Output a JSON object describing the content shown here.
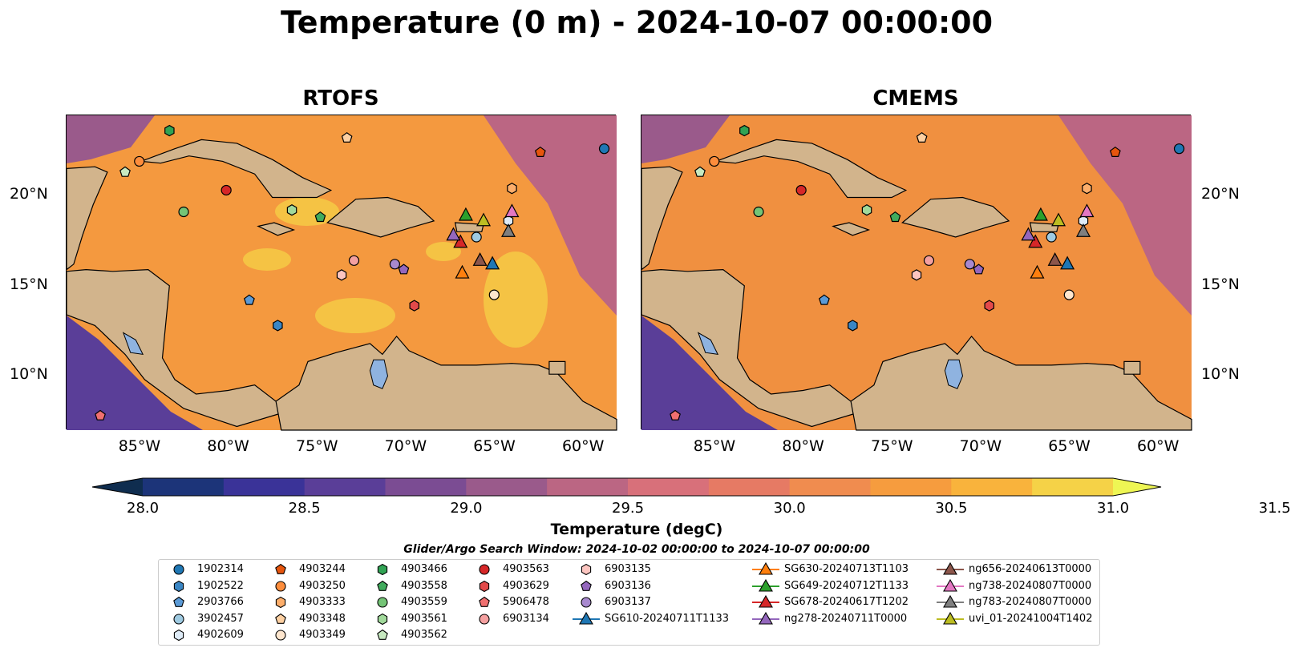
{
  "title": "Temperature (0 m) - 2024-10-07 00:00:00",
  "panels": [
    {
      "title": "RTOFS",
      "fill": "#f4993f"
    },
    {
      "title": "CMEMS",
      "fill": "#f09040"
    }
  ],
  "x_tick_labels": [
    "85°W",
    "80°W",
    "75°W",
    "70°W",
    "65°W",
    "60°W"
  ],
  "y_tick_labels": [
    "20°N",
    "15°N",
    "10°N"
  ],
  "colorbar": {
    "title": "Temperature (degC)",
    "tick_labels": [
      "28.0",
      "28.5",
      "29.0",
      "29.5",
      "30.0",
      "30.5",
      "31.0",
      "31.5"
    ],
    "colors": [
      "#0f2d4f",
      "#1c3479",
      "#3a3398",
      "#5a3e98",
      "#7b4c93",
      "#9a5a8b",
      "#bb6683",
      "#d8707a",
      "#e67a64",
      "#f08c4f",
      "#f69c3e",
      "#f9b33c",
      "#f5d247",
      "#eef654"
    ]
  },
  "legend": {
    "title": "Glider/Argo Search Window: 2024-10-02 00:00:00 to 2024-10-07 00:00:00",
    "entries": [
      {
        "label": "1902314",
        "shape": "circle",
        "color": "#1f77b4"
      },
      {
        "label": "1902522",
        "shape": "hexagon",
        "color": "#3a86c4"
      },
      {
        "label": "2903766",
        "shape": "pentagon",
        "color": "#5b9ad6"
      },
      {
        "label": "3902457",
        "shape": "circle",
        "color": "#9ecae1"
      },
      {
        "label": "4902609",
        "shape": "hexagon",
        "color": "#deebf7"
      },
      {
        "label": "4903244",
        "shape": "pentagon",
        "color": "#e6550d"
      },
      {
        "label": "4903250",
        "shape": "circle",
        "color": "#fd8d3c"
      },
      {
        "label": "4903333",
        "shape": "hexagon",
        "color": "#fdae6b"
      },
      {
        "label": "4903348",
        "shape": "pentagon",
        "color": "#fdd0a2"
      },
      {
        "label": "4903349",
        "shape": "circle",
        "color": "#fee6ce"
      },
      {
        "label": "4903466",
        "shape": "hexagon",
        "color": "#31a354"
      },
      {
        "label": "4903558",
        "shape": "pentagon",
        "color": "#41ab5d"
      },
      {
        "label": "4903559",
        "shape": "circle",
        "color": "#74c476"
      },
      {
        "label": "4903561",
        "shape": "hexagon",
        "color": "#a1d99b"
      },
      {
        "label": "4903562",
        "shape": "pentagon",
        "color": "#c7e9c0"
      },
      {
        "label": "4903563",
        "shape": "circle",
        "color": "#d62728"
      },
      {
        "label": "4903629",
        "shape": "hexagon",
        "color": "#e34a4a"
      },
      {
        "label": "5906478",
        "shape": "pentagon",
        "color": "#f07070"
      },
      {
        "label": "6903134",
        "shape": "circle",
        "color": "#f4a0a0"
      },
      {
        "label": "6903135",
        "shape": "hexagon",
        "color": "#fcc5c0"
      },
      {
        "label": "6903136",
        "shape": "pentagon",
        "color": "#9467bd"
      },
      {
        "label": "6903137",
        "shape": "circle",
        "color": "#a889cf"
      },
      {
        "label": "SG610-20240711T1133",
        "shape": "triangle",
        "color": "#1f77b4"
      },
      {
        "label": "SG630-20240713T1103",
        "shape": "triangle",
        "color": "#ff7f0e"
      },
      {
        "label": "SG649-20240712T1133",
        "shape": "triangle",
        "color": "#2ca02c"
      },
      {
        "label": "SG678-20240617T1202",
        "shape": "triangle",
        "color": "#d62728"
      },
      {
        "label": "ng278-20240711T0000",
        "shape": "triangle",
        "color": "#9467bd"
      },
      {
        "label": "ng656-20240613T0000",
        "shape": "triangle",
        "color": "#8c564b"
      },
      {
        "label": "ng738-20240807T0000",
        "shape": "triangle",
        "color": "#e377c2"
      },
      {
        "label": "ng783-20240807T0000",
        "shape": "triangle",
        "color": "#7f7f7f"
      },
      {
        "label": "uvi_01-20241004T1402",
        "shape": "triangle",
        "color": "#bcbd22"
      }
    ]
  },
  "markers": [
    {
      "lon": -58.8,
      "lat": 22.6,
      "shape": "circle",
      "color": "#1f77b4"
    },
    {
      "lon": -77.2,
      "lat": 12.8,
      "shape": "hexagon",
      "color": "#3a86c4"
    },
    {
      "lon": -78.8,
      "lat": 14.2,
      "shape": "pentagon",
      "color": "#5b9ad6"
    },
    {
      "lon": -66.0,
      "lat": 17.7,
      "shape": "circle",
      "color": "#9ecae1"
    },
    {
      "lon": -64.2,
      "lat": 18.6,
      "shape": "hexagon",
      "color": "#deebf7"
    },
    {
      "lon": -62.4,
      "lat": 22.4,
      "shape": "pentagon",
      "color": "#e6550d"
    },
    {
      "lon": -85.0,
      "lat": 21.9,
      "shape": "circle",
      "color": "#fd8d3c"
    },
    {
      "lon": -64.0,
      "lat": 20.4,
      "shape": "hexagon",
      "color": "#fdae6b"
    },
    {
      "lon": -73.3,
      "lat": 23.2,
      "shape": "pentagon",
      "color": "#fdd0a2"
    },
    {
      "lon": -65.0,
      "lat": 14.5,
      "shape": "circle",
      "color": "#fee6ce"
    },
    {
      "lon": -83.3,
      "lat": 23.6,
      "shape": "hexagon",
      "color": "#31a354"
    },
    {
      "lon": -74.8,
      "lat": 18.8,
      "shape": "pentagon",
      "color": "#41ab5d"
    },
    {
      "lon": -82.5,
      "lat": 19.1,
      "shape": "circle",
      "color": "#74c476"
    },
    {
      "lon": -76.4,
      "lat": 19.2,
      "shape": "hexagon",
      "color": "#a1d99b"
    },
    {
      "lon": -85.8,
      "lat": 21.3,
      "shape": "pentagon",
      "color": "#c7e9c0"
    },
    {
      "lon": -80.1,
      "lat": 20.3,
      "shape": "circle",
      "color": "#d62728"
    },
    {
      "lon": -69.5,
      "lat": 13.9,
      "shape": "hexagon",
      "color": "#e34a4a"
    },
    {
      "lon": -87.2,
      "lat": 7.8,
      "shape": "pentagon",
      "color": "#f07070"
    },
    {
      "lon": -72.9,
      "lat": 16.4,
      "shape": "circle",
      "color": "#f4a0a0"
    },
    {
      "lon": -73.6,
      "lat": 15.6,
      "shape": "hexagon",
      "color": "#fcc5c0"
    },
    {
      "lon": -70.1,
      "lat": 15.9,
      "shape": "pentagon",
      "color": "#9467bd"
    },
    {
      "lon": -70.6,
      "lat": 16.2,
      "shape": "circle",
      "color": "#a889cf"
    },
    {
      "lon": -65.1,
      "lat": 16.2,
      "shape": "triangle",
      "color": "#1f77b4"
    },
    {
      "lon": -66.8,
      "lat": 15.7,
      "shape": "triangle",
      "color": "#ff7f0e"
    },
    {
      "lon": -66.6,
      "lat": 18.9,
      "shape": "triangle",
      "color": "#2ca02c"
    },
    {
      "lon": -66.9,
      "lat": 17.4,
      "shape": "triangle",
      "color": "#d62728"
    },
    {
      "lon": -67.3,
      "lat": 17.8,
      "shape": "triangle",
      "color": "#9467bd"
    },
    {
      "lon": -65.8,
      "lat": 16.4,
      "shape": "triangle",
      "color": "#8c564b"
    },
    {
      "lon": -64.0,
      "lat": 19.1,
      "shape": "triangle",
      "color": "#e377c2"
    },
    {
      "lon": -64.2,
      "lat": 18.0,
      "shape": "triangle",
      "color": "#7f7f7f"
    },
    {
      "lon": -65.6,
      "lat": 18.6,
      "shape": "triangle",
      "color": "#bcbd22"
    }
  ]
}
